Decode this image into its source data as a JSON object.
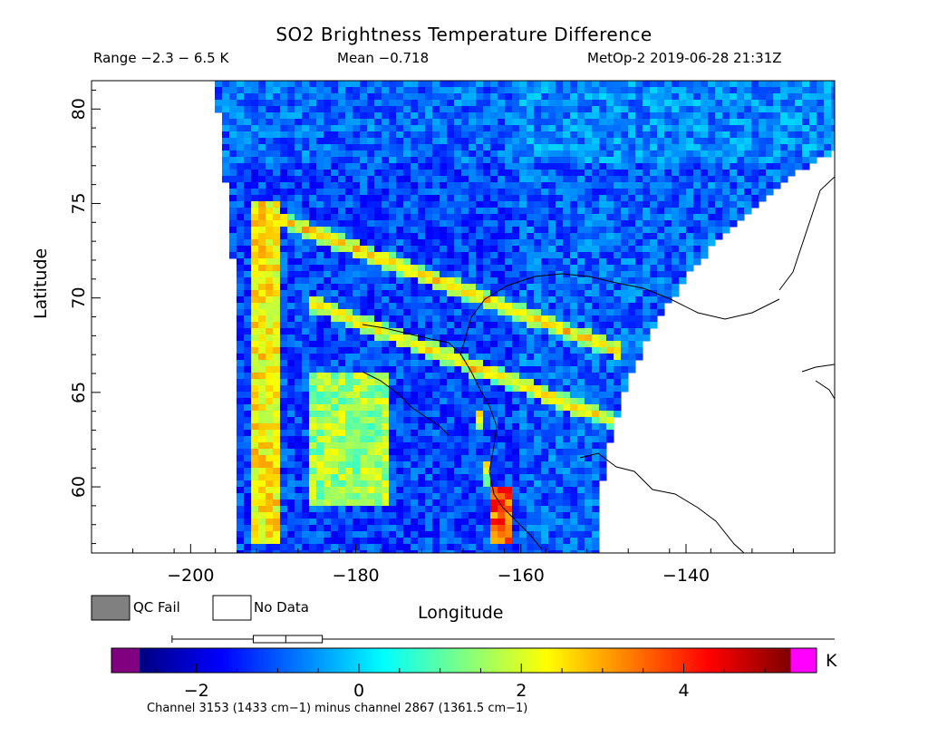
{
  "chart_data": {
    "type": "heatmap",
    "title": "SO2 Brightness Temperature Difference",
    "info": {
      "range": "Range −2.3 − 6.5 K",
      "mean": "Mean −0.718",
      "satellite": "MetOp-2 2019-06-28 21:31Z"
    },
    "xlabel": "Longitude",
    "ylabel": "Latitude",
    "xlim": [
      -212,
      -122
    ],
    "ylim": [
      56.5,
      81.5
    ],
    "x_ticks": [
      -200,
      -180,
      -160,
      -140
    ],
    "x_tick_labels": [
      "−200",
      "−180",
      "−160",
      "−140"
    ],
    "y_ticks": [
      60,
      65,
      70,
      75,
      80
    ],
    "y_tick_labels": [
      "60",
      "65",
      "70",
      "75",
      "80"
    ],
    "legend": [
      {
        "label": "QC Fail",
        "color": "#808080"
      },
      {
        "label": "No Data",
        "color": "#ffffff"
      }
    ],
    "colorbar": {
      "unit": "K",
      "range": [
        -2.7,
        5.3
      ],
      "tick_values": [
        -2,
        0,
        2,
        4
      ],
      "tick_labels": [
        "−2",
        "0",
        "2",
        "4"
      ],
      "under_color": "#800080",
      "over_color": "#ff00ff",
      "stops": [
        "#000080",
        "#0000ff",
        "#0080ff",
        "#00ffff",
        "#80ff80",
        "#ffff00",
        "#ff8000",
        "#ff0000",
        "#800000"
      ]
    },
    "boxplot": {
      "whisker_low": -2.3,
      "q1": -1.3,
      "median": -0.9,
      "q3": -0.45,
      "whisker_high": 5.3
    },
    "caption": "Channel 3153 (1433 cm−1) minus channel 2867 (1361.5 cm−1)",
    "background_value": -1.2,
    "features": [
      {
        "name": "arc-north",
        "lat": 74.8,
        "lon": [
          -193,
          -160
        ],
        "value": 2.8,
        "width": 0.45
      },
      {
        "name": "arc-main",
        "lat": 69.8,
        "lon": [
          -186,
          -150
        ],
        "value": 2.6,
        "width": 0.45
      },
      {
        "name": "west-bright-band",
        "lat": [
          57,
          75
        ],
        "lon": -191,
        "value": 2.4,
        "width": 1.6
      },
      {
        "name": "plume-south",
        "lat": [
          59,
          66
        ],
        "lon": [
          -186,
          -176
        ],
        "value": 1.2
      },
      {
        "name": "plume-coast",
        "lat": [
          57,
          60
        ],
        "lon": [
          -164,
          -161
        ],
        "value": 3.8
      }
    ]
  }
}
